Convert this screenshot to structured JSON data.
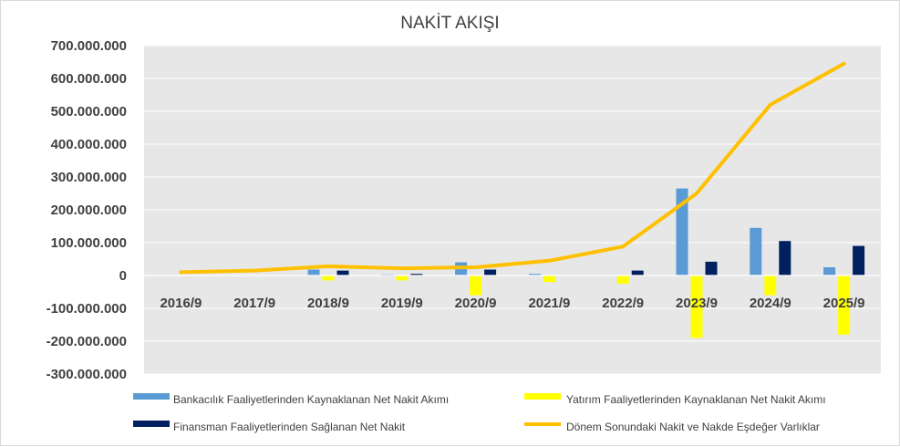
{
  "chart_data": {
    "type": "bar",
    "title": "NAKİT AKIŞI",
    "categories": [
      "2016/9",
      "2017/9",
      "2018/9",
      "2019/9",
      "2020/9",
      "2021/9",
      "2022/9",
      "2023/9",
      "2024/9",
      "2025/9"
    ],
    "ylim": [
      -300000000,
      700000000
    ],
    "yticks": [
      "700.000.000",
      "600.000.000",
      "500.000.000",
      "400.000.000",
      "300.000.000",
      "200.000.000",
      "100.000.000",
      "0",
      "-100.000.000",
      "-200.000.000",
      "-300.000.000"
    ],
    "ytick_values": [
      700000000,
      600000000,
      500000000,
      400000000,
      300000000,
      200000000,
      100000000,
      0,
      -100000000,
      -200000000,
      -300000000
    ],
    "grid": true,
    "legend_position": "bottom",
    "plot_background": "#e7e7e7",
    "series": [
      {
        "name": "Bankacılık Faaliyetlerinden Kaynaklanan Net Nakit Akımı",
        "type": "bar",
        "color": "#5b9bd5",
        "values": [
          0,
          0,
          18000000,
          3000000,
          40000000,
          5000000,
          0,
          265000000,
          145000000,
          25000000
        ]
      },
      {
        "name": "Yatırım Faaliyetlerinden Kaynaklanan Net Nakit Akımı",
        "type": "bar",
        "color": "#ffff00",
        "values": [
          0,
          0,
          -15000000,
          -15000000,
          -60000000,
          -20000000,
          -25000000,
          -190000000,
          -60000000,
          -180000000
        ]
      },
      {
        "name": "Finansman Faaliyetlerinden Sağlanan Net Nakit",
        "type": "bar",
        "color": "#002060",
        "values": [
          0,
          0,
          15000000,
          5000000,
          18000000,
          0,
          15000000,
          42000000,
          105000000,
          90000000
        ]
      },
      {
        "name": "Dönem Sonundaki Nakit ve Nakde Eşdeğer Varlıklar",
        "type": "line",
        "color": "#ffc000",
        "values": [
          10000000,
          15000000,
          28000000,
          22000000,
          25000000,
          45000000,
          88000000,
          250000000,
          520000000,
          645000000
        ]
      }
    ]
  }
}
